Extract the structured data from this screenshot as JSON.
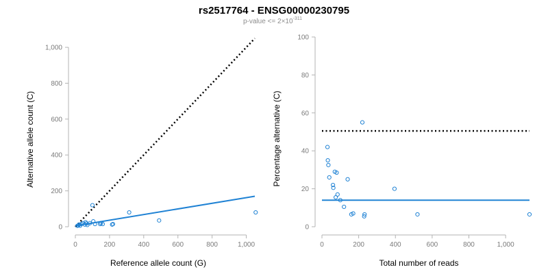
{
  "figure": {
    "title": "rs2517764 - ENSG00000230795",
    "subtitle_prefix": "p-value <= 2×10",
    "subtitle_exponent": "-311"
  },
  "colors": {
    "points": "#1f82d4",
    "fit_line": "#1f82d4",
    "reference_line": "#000000"
  },
  "chart_data": [
    {
      "type": "scatter",
      "xlabel": "Reference allele count (G)",
      "ylabel": "Alternative allele count (C)",
      "xlim": [
        0,
        1050
      ],
      "ylim": [
        0,
        1050
      ],
      "xticks": [
        0,
        200,
        400,
        600,
        800,
        1000
      ],
      "xtick_labels": [
        "0",
        "200",
        "400",
        "600",
        "800",
        "1,000"
      ],
      "yticks": [
        0,
        200,
        400,
        600,
        800,
        1000
      ],
      "ytick_labels": [
        "0",
        "200",
        "400",
        "600",
        "800",
        "1,000"
      ],
      "grid": false,
      "points": [
        {
          "x": 12,
          "y": 5
        },
        {
          "x": 18,
          "y": 8
        },
        {
          "x": 22,
          "y": 12
        },
        {
          "x": 28,
          "y": 6
        },
        {
          "x": 35,
          "y": 15
        },
        {
          "x": 45,
          "y": 20
        },
        {
          "x": 55,
          "y": 12
        },
        {
          "x": 60,
          "y": 25
        },
        {
          "x": 65,
          "y": 18
        },
        {
          "x": 70,
          "y": 10
        },
        {
          "x": 85,
          "y": 20
        },
        {
          "x": 100,
          "y": 120
        },
        {
          "x": 105,
          "y": 30
        },
        {
          "x": 115,
          "y": 15
        },
        {
          "x": 145,
          "y": 15
        },
        {
          "x": 150,
          "y": 20
        },
        {
          "x": 160,
          "y": 15
        },
        {
          "x": 215,
          "y": 12
        },
        {
          "x": 220,
          "y": 15
        },
        {
          "x": 315,
          "y": 80
        },
        {
          "x": 490,
          "y": 35
        },
        {
          "x": 1055,
          "y": 80
        }
      ],
      "lines": [
        {
          "role": "fit",
          "points": [
            [
              0,
              5
            ],
            [
              1050,
              170
            ]
          ]
        },
        {
          "role": "reference",
          "points": [
            [
              0,
              0
            ],
            [
              1050,
              1050
            ]
          ]
        }
      ]
    },
    {
      "type": "scatter",
      "xlabel": "Total number of reads",
      "ylabel": "Percentage alternative (C)",
      "xlim": [
        0,
        1130
      ],
      "ylim": [
        0,
        100
      ],
      "xticks": [
        0,
        200,
        400,
        600,
        800,
        1000
      ],
      "xtick_labels": [
        "0",
        "200",
        "400",
        "600",
        "800",
        "1,000"
      ],
      "yticks": [
        0,
        20,
        40,
        60,
        80,
        100
      ],
      "ytick_labels": [
        "0",
        "20",
        "40",
        "60",
        "80",
        "100"
      ],
      "grid": false,
      "points": [
        {
          "x": 30,
          "y": 42
        },
        {
          "x": 32,
          "y": 35
        },
        {
          "x": 35,
          "y": 32.5
        },
        {
          "x": 40,
          "y": 26
        },
        {
          "x": 60,
          "y": 22
        },
        {
          "x": 62,
          "y": 20.5
        },
        {
          "x": 70,
          "y": 29
        },
        {
          "x": 80,
          "y": 28.5
        },
        {
          "x": 75,
          "y": 15.5
        },
        {
          "x": 85,
          "y": 17
        },
        {
          "x": 100,
          "y": 14
        },
        {
          "x": 120,
          "y": 10.5
        },
        {
          "x": 140,
          "y": 25
        },
        {
          "x": 160,
          "y": 6.5
        },
        {
          "x": 170,
          "y": 7
        },
        {
          "x": 220,
          "y": 55
        },
        {
          "x": 230,
          "y": 5.5
        },
        {
          "x": 232,
          "y": 6.5
        },
        {
          "x": 395,
          "y": 20
        },
        {
          "x": 520,
          "y": 6.5
        },
        {
          "x": 1130,
          "y": 6.5
        }
      ],
      "lines": [
        {
          "role": "fit",
          "points": [
            [
              0,
              14
            ],
            [
              1130,
              14
            ]
          ]
        },
        {
          "role": "reference",
          "points": [
            [
              0,
              50.5
            ],
            [
              1130,
              50.5
            ]
          ]
        }
      ]
    }
  ]
}
